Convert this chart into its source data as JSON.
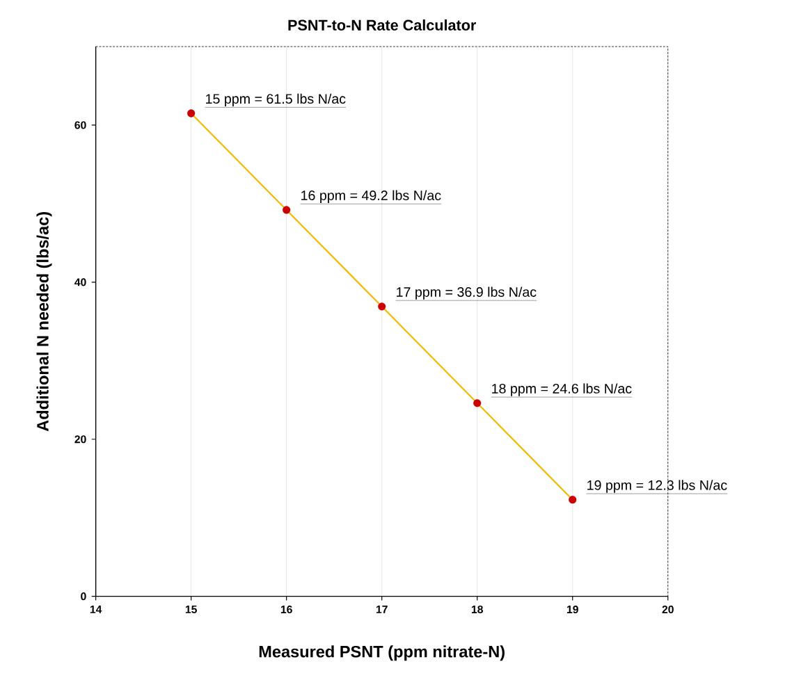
{
  "chart_data": {
    "type": "line",
    "title": "PSNT-to-N Rate Calculator",
    "xlabel": "Measured PSNT (ppm nitrate-N)",
    "ylabel": "Additional N needed (lbs/ac)",
    "x": [
      15,
      16,
      17,
      18,
      19
    ],
    "series": [
      {
        "color": "#f5b800",
        "colors": [
          "#cc0000",
          "#cc0000",
          "#cc0000",
          "#cc0000",
          "#cc0000"
        ],
        "values": [
          61.5,
          49.2,
          36.9,
          24.6,
          12.3
        ]
      }
    ],
    "xlim": [
      14,
      20
    ],
    "ylim": [
      0,
      70
    ],
    "xticks": [
      14,
      15,
      16,
      17,
      18,
      19,
      20
    ],
    "yticks": [
      0,
      20,
      40,
      60
    ],
    "grid": "x",
    "marker": "circle",
    "annotations": [
      {
        "text": "15 ppm = 61.5 lbs N/ac",
        "x": 15,
        "y": 61.5
      },
      {
        "text": "16 ppm = 49.2 lbs N/ac",
        "x": 16,
        "y": 49.2
      },
      {
        "text": "17 ppm = 36.9 lbs N/ac",
        "x": 17,
        "y": 36.9
      },
      {
        "text": "18 ppm = 24.6 lbs N/ac",
        "x": 18,
        "y": 24.6
      },
      {
        "text": "19 ppm = 12.3 lbs N/ac",
        "x": 19,
        "y": 12.3
      }
    ]
  }
}
